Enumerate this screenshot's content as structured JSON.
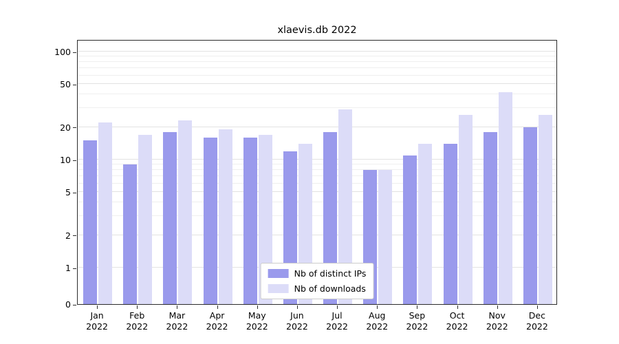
{
  "chart_data": {
    "type": "bar",
    "title": "xlaevis.db 2022",
    "categories": [
      "Jan 2022",
      "Feb 2022",
      "Mar 2022",
      "Apr 2022",
      "May 2022",
      "Jun 2022",
      "Jul 2022",
      "Aug 2022",
      "Sep 2022",
      "Oct 2022",
      "Nov 2022",
      "Dec 2022"
    ],
    "series": [
      {
        "name": "Nb of distinct IPs",
        "color": "#9a9aec",
        "values": [
          15,
          9,
          18,
          16,
          16,
          12,
          18,
          8,
          11,
          14,
          18,
          20
        ]
      },
      {
        "name": "Nb of downloads",
        "color": "#dcdcf8",
        "values": [
          22,
          17,
          23,
          19,
          17,
          14,
          29,
          8,
          14,
          26,
          42,
          26
        ]
      }
    ],
    "yscale": "symlog",
    "yticks": [
      0,
      1,
      2,
      5,
      10,
      20,
      50,
      100
    ],
    "yticks_minor": [
      3,
      4,
      6,
      7,
      8,
      9,
      30,
      40,
      60,
      70,
      80,
      90
    ],
    "ylim": [
      0,
      135
    ],
    "grid": true,
    "legend_position": "lower center"
  }
}
